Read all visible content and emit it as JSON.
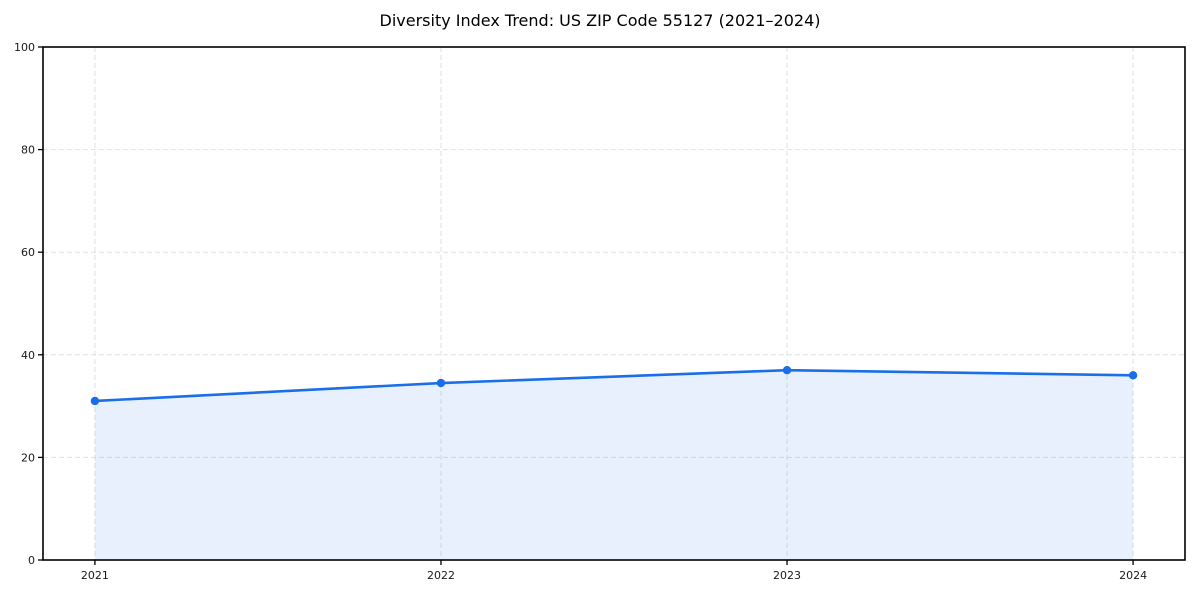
{
  "chart_data": {
    "type": "area",
    "title": "Diversity Index Trend: US ZIP Code 55127 (2021–2024)",
    "series_name": "Diversity Index",
    "x": [
      2021,
      2022,
      2023,
      2024
    ],
    "values": [
      31,
      34.5,
      37,
      36
    ],
    "xlabel": "",
    "ylabel": "",
    "xlim": [
      2020.85,
      2024.15
    ],
    "ylim": [
      0,
      100
    ],
    "xticks": [
      2021,
      2022,
      2023,
      2024
    ],
    "yticks": [
      0,
      20,
      40,
      60,
      80,
      100
    ],
    "grid": "dashed-both-axes",
    "legend_position": "none",
    "line_color": "#1a6fe8",
    "marker": "circle",
    "fill_opacity": 0.1,
    "grid_color": "#e1e1e1",
    "axis_color": "#000000",
    "text_color": "#1a1a1a",
    "background_color": "#ffffff"
  }
}
